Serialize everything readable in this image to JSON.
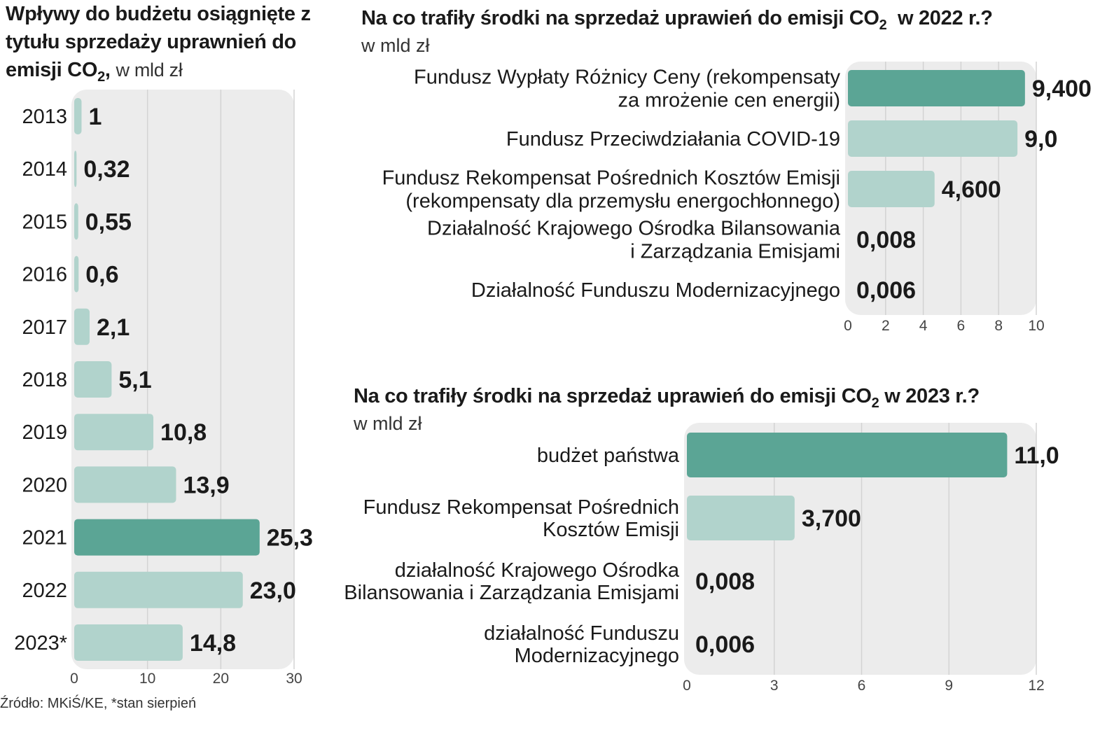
{
  "chart_data": [
    {
      "type": "bar",
      "orientation": "horizontal",
      "title_main": "Wpływy do budżetu osiągnięte z tytułu sprzedaży uprawnień do emisji CO",
      "title_sub": "2",
      "title_tail": ",",
      "unit": "w mld zł",
      "categories": [
        "2013",
        "2014",
        "2015",
        "2016",
        "2017",
        "2018",
        "2019",
        "2020",
        "2021",
        "2022",
        "2023*"
      ],
      "values": [
        1,
        0.32,
        0.55,
        0.6,
        2.1,
        5.1,
        10.8,
        13.9,
        25.3,
        23.0,
        14.8
      ],
      "value_labels": [
        "1",
        "0,32",
        "0,55",
        "0,6",
        "2,1",
        "5,1",
        "10,8",
        "13,9",
        "25,3",
        "23,0",
        "14,8"
      ],
      "highlight_index": 8,
      "xlim": [
        0,
        30
      ],
      "ticks": [
        0,
        10,
        20,
        30
      ],
      "grid": true,
      "source": "Źródło: MKiŚ/KE, *stan sierpień"
    },
    {
      "type": "bar",
      "orientation": "horizontal",
      "title_main": "Na co trafiły środki na sprzedaż uprawień do emisji CO",
      "title_sub": "2",
      "title_tail": "  w 2022 r.?",
      "unit": "w mld zł",
      "categories": [
        [
          "Fundusz Wypłaty Różnicy Ceny (rekompensaty",
          "za mrożenie cen energii)"
        ],
        [
          "Fundusz Przeciwdziałania COVID-19"
        ],
        [
          "Fundusz Rekompensat Pośrednich Kosztów Emisji",
          "(rekompensaty dla przemysłu energochłonnego)"
        ],
        [
          "Działalność Krajowego Ośrodka Bilansowania",
          "i Zarządzania Emisjami"
        ],
        [
          "Działalność Funduszu Modernizacyjnego"
        ]
      ],
      "values": [
        9.4,
        9.0,
        4.6,
        0.008,
        0.006
      ],
      "value_labels": [
        "9,400",
        "9,0",
        "4,600",
        "0,008",
        "0,006"
      ],
      "highlight_index": 0,
      "xlim": [
        0,
        10
      ],
      "ticks": [
        0,
        2,
        4,
        6,
        8,
        10
      ],
      "grid": true
    },
    {
      "type": "bar",
      "orientation": "horizontal",
      "title_main": "Na co trafiły środki na sprzedaż uprawień do emisji CO",
      "title_sub": "2",
      "title_tail": " w 2023 r.?",
      "unit": "w mld zł",
      "categories": [
        [
          "budżet państwa"
        ],
        [
          "Fundusz Rekompensat Pośrednich",
          "Kosztów Emisji"
        ],
        [
          "działalność Krajowego Ośrodka",
          "Bilansowania i Zarządzania Emisjami"
        ],
        [
          "działalność Funduszu",
          "Modernizacyjnego"
        ]
      ],
      "values": [
        11.0,
        3.7,
        0.008,
        0.006
      ],
      "value_labels": [
        "11,0",
        "3,700",
        "0,008",
        "0,006"
      ],
      "highlight_index": 0,
      "xlim": [
        0,
        12
      ],
      "ticks": [
        0,
        3,
        6,
        9,
        12
      ],
      "grid": true
    }
  ],
  "colors": {
    "highlight": "#5ba595",
    "bar": "#b1d3cc",
    "panel": "#ececec",
    "grid": "#d3d3d3"
  }
}
